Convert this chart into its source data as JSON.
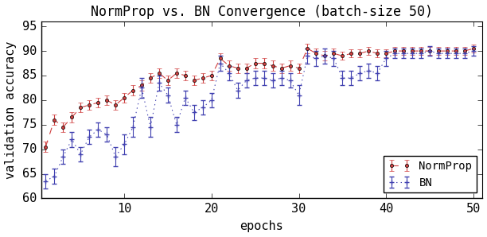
{
  "title": "NormProp vs. BN Convergence (batch-size 50)",
  "xlabel": "epochs",
  "ylabel": "validation accuracy",
  "xlim": [
    0.5,
    51
  ],
  "ylim": [
    60,
    96
  ],
  "yticks": [
    60,
    65,
    70,
    75,
    80,
    85,
    90,
    95
  ],
  "xticks": [
    10,
    20,
    30,
    40,
    50
  ],
  "normprop_color": "#d04040",
  "bn_color": "#4040b0",
  "normprop_x": [
    1,
    2,
    3,
    4,
    5,
    6,
    7,
    8,
    9,
    10,
    11,
    12,
    13,
    14,
    15,
    16,
    17,
    18,
    19,
    20,
    21,
    22,
    23,
    24,
    25,
    26,
    27,
    28,
    29,
    30,
    31,
    32,
    33,
    34,
    35,
    36,
    37,
    38,
    39,
    40,
    41,
    42,
    43,
    44,
    45,
    46,
    47,
    48,
    49,
    50
  ],
  "normprop_y": [
    70.5,
    76.0,
    74.5,
    76.5,
    78.5,
    79.0,
    79.5,
    80.0,
    79.0,
    80.5,
    82.0,
    83.0,
    84.5,
    85.5,
    84.0,
    85.5,
    85.0,
    84.0,
    84.5,
    85.0,
    88.5,
    87.0,
    86.5,
    86.5,
    87.5,
    87.5,
    87.0,
    86.5,
    87.0,
    86.5,
    90.5,
    89.5,
    89.0,
    89.5,
    89.0,
    89.5,
    89.5,
    90.0,
    89.5,
    89.5,
    90.0,
    90.0,
    90.0,
    90.0,
    90.0,
    90.0,
    90.0,
    90.0,
    90.0,
    90.5
  ],
  "normprop_err": [
    1.0,
    1.0,
    1.0,
    1.0,
    1.0,
    1.0,
    1.0,
    1.0,
    1.0,
    1.0,
    1.0,
    1.0,
    1.0,
    1.0,
    1.0,
    1.0,
    1.0,
    1.0,
    1.0,
    1.0,
    1.0,
    1.0,
    1.0,
    1.0,
    1.0,
    1.0,
    1.0,
    1.0,
    1.0,
    1.0,
    1.0,
    1.0,
    1.0,
    1.0,
    0.8,
    0.8,
    0.8,
    0.8,
    0.8,
    0.8,
    0.8,
    0.8,
    0.8,
    0.8,
    0.8,
    0.8,
    0.8,
    0.8,
    0.8,
    0.8
  ],
  "bn_x": [
    1,
    2,
    3,
    4,
    5,
    6,
    7,
    8,
    9,
    10,
    11,
    12,
    13,
    14,
    15,
    16,
    17,
    18,
    19,
    20,
    21,
    22,
    23,
    24,
    25,
    26,
    27,
    28,
    29,
    30,
    31,
    32,
    33,
    34,
    35,
    36,
    37,
    38,
    39,
    40,
    41,
    42,
    43,
    44,
    45,
    46,
    47,
    48,
    49,
    50
  ],
  "bn_y": [
    63.5,
    64.5,
    68.5,
    72.0,
    69.0,
    72.5,
    74.0,
    73.0,
    68.5,
    71.0,
    74.5,
    82.5,
    74.5,
    83.5,
    81.0,
    75.0,
    80.5,
    77.5,
    78.5,
    80.0,
    87.5,
    85.5,
    82.0,
    84.0,
    84.5,
    84.5,
    84.0,
    84.5,
    84.0,
    81.0,
    89.0,
    88.5,
    89.0,
    88.5,
    84.5,
    84.5,
    85.5,
    86.0,
    85.5,
    88.5,
    89.5,
    89.5,
    89.5,
    89.5,
    90.0,
    89.5,
    89.5,
    89.5,
    89.5,
    90.0
  ],
  "bn_err": [
    1.5,
    1.5,
    1.5,
    1.5,
    1.5,
    1.5,
    1.5,
    1.5,
    2.0,
    2.0,
    2.0,
    2.0,
    2.0,
    1.5,
    1.5,
    1.5,
    1.5,
    1.5,
    1.5,
    1.5,
    1.5,
    1.5,
    1.5,
    1.5,
    1.5,
    1.5,
    1.5,
    1.5,
    1.5,
    2.0,
    1.5,
    1.5,
    1.5,
    1.5,
    1.5,
    1.5,
    1.5,
    1.5,
    1.5,
    1.5,
    1.0,
    1.0,
    1.0,
    1.0,
    1.0,
    1.0,
    1.0,
    1.0,
    1.0,
    1.0
  ],
  "title_fontsize": 12,
  "label_fontsize": 11,
  "tick_fontsize": 11,
  "legend_fontsize": 10
}
